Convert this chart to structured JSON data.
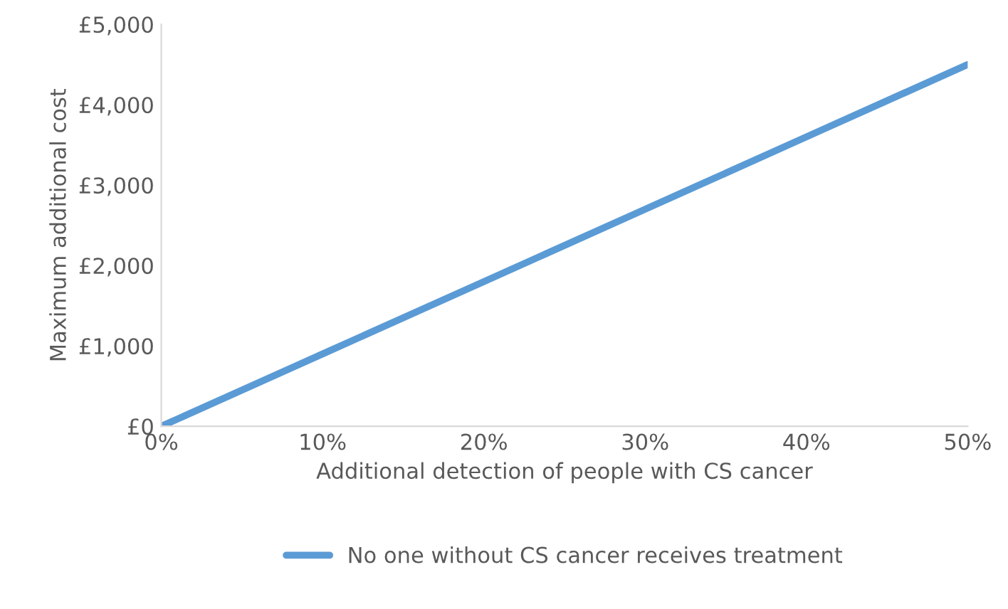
{
  "chart_data": {
    "type": "line",
    "xlabel": "Additional detection of people with CS cancer",
    "ylabel": "Maximum additional cost",
    "x": [
      0,
      10,
      20,
      30,
      40,
      50
    ],
    "series": [
      {
        "name": "No one without CS cancer receives treatment",
        "color": "#5b9bd5",
        "values": [
          0,
          900,
          1800,
          2700,
          3600,
          4500
        ]
      }
    ],
    "xlim": [
      0,
      50
    ],
    "xticks": [
      {
        "value": 0,
        "label": "0%"
      },
      {
        "value": 10,
        "label": "10%"
      },
      {
        "value": 20,
        "label": "20%"
      },
      {
        "value": 30,
        "label": "30%"
      },
      {
        "value": 40,
        "label": "40%"
      },
      {
        "value": 50,
        "label": "50%"
      }
    ],
    "ylim": [
      0,
      5000
    ],
    "yticks": [
      {
        "value": 0,
        "label": "£0"
      },
      {
        "value": 1000,
        "label": "£1,000"
      },
      {
        "value": 2000,
        "label": "£2,000"
      },
      {
        "value": 3000,
        "label": "£3,000"
      },
      {
        "value": 4000,
        "label": "£4,000"
      },
      {
        "value": 5000,
        "label": "£5,000"
      }
    ],
    "grid": false,
    "legend": "bottom",
    "marker": "none",
    "line_style": "solid"
  }
}
